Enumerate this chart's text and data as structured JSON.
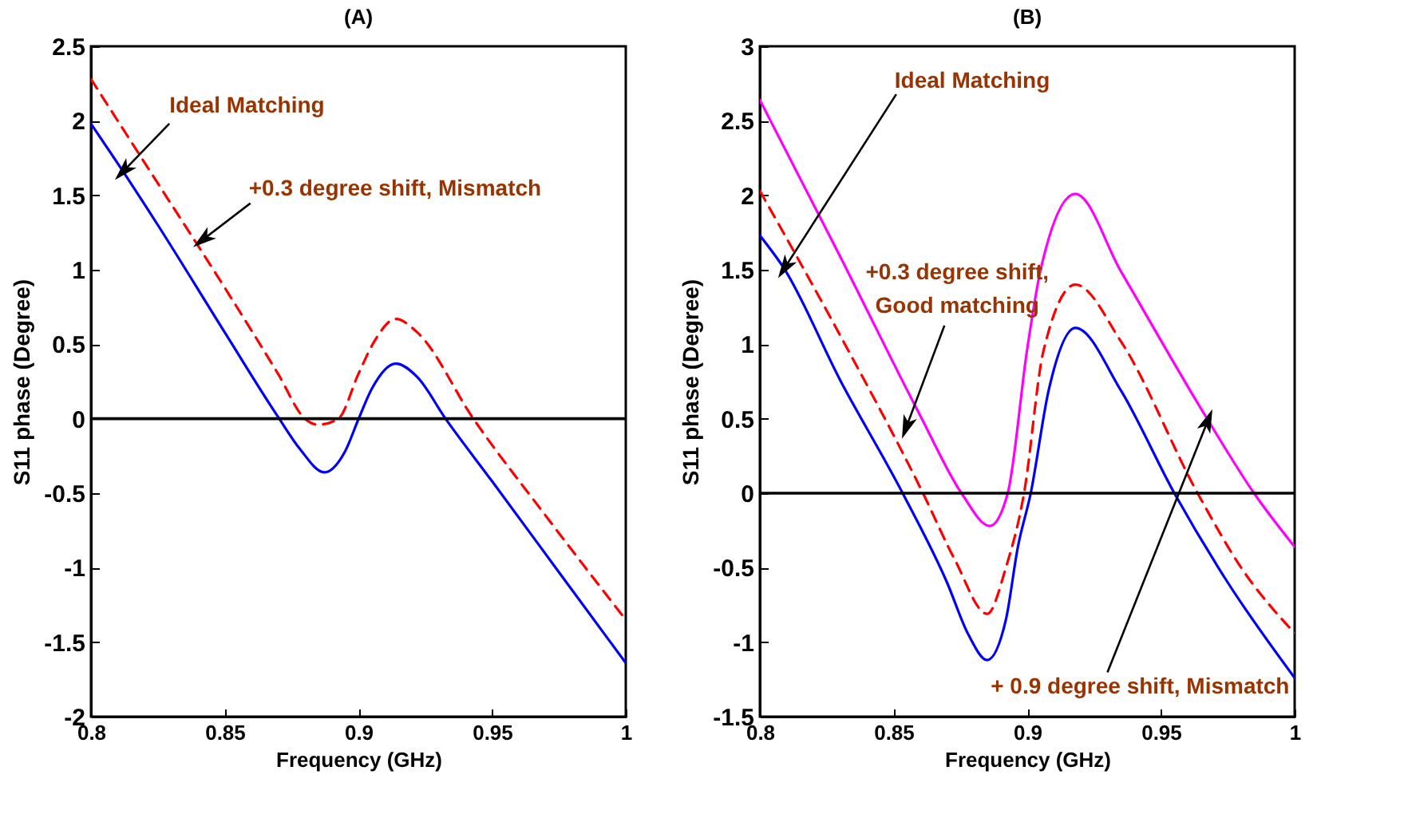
{
  "chart_data": [
    {
      "type": "line",
      "title": "(A)",
      "xlabel": "Frequency (GHz)",
      "ylabel": "S11 phase (Degree)",
      "xlim": [
        0.8,
        1
      ],
      "xticks": [
        0.8,
        0.85,
        0.9,
        0.95,
        1
      ],
      "ylim": [
        -2,
        2.5
      ],
      "yticks": [
        -2,
        -1.5,
        -1,
        -0.5,
        0,
        0.5,
        1,
        1.5,
        2,
        2.5
      ],
      "grid": false,
      "series": [
        {
          "color": "#0000ff",
          "line_style": "solid",
          "x": [
            0.8,
            0.812,
            0.825,
            0.85,
            0.8704,
            0.878,
            0.8873,
            0.895,
            0.9001,
            0.905,
            0.914,
            0.922,
            0.9326,
            0.95,
            0.975,
            1.0
          ],
          "values": [
            1.98,
            1.66,
            1.3,
            0.58,
            0,
            -0.2,
            -0.36,
            -0.22,
            0,
            0.2,
            0.37,
            0.28,
            0,
            -0.42,
            -1.03,
            -1.64
          ]
        },
        {
          "color": "#ff0000",
          "line_style": "dashed",
          "x": [
            0.8,
            0.825,
            0.85,
            0.87,
            0.88,
            0.885,
            0.8925,
            0.9,
            0.906,
            0.914,
            0.922,
            0.943,
            0.97,
            1.0
          ],
          "values": [
            2.28,
            1.58,
            0.88,
            0.3,
            0,
            -0.04,
            0,
            0.3,
            0.52,
            0.67,
            0.58,
            0,
            -0.65,
            -1.35
          ]
        }
      ],
      "ref_lines": [
        {
          "axis": "y",
          "value": 0,
          "color": "#000000"
        }
      ],
      "annotations": [
        {
          "text": "Ideal Matching",
          "x": 0.812,
          "y": 1.66
        },
        {
          "text": "+0.3 degree shift, Mismatch",
          "x": 0.8417,
          "y": 1.2
        }
      ]
    },
    {
      "type": "line",
      "title": "(B)",
      "xlabel": "Frequency (GHz)",
      "ylabel": "S11 phase (Degree)",
      "xlim": [
        0.8,
        1
      ],
      "xticks": [
        0.8,
        0.85,
        0.9,
        0.95,
        1
      ],
      "ylim": [
        -1.5,
        3
      ],
      "yticks": [
        -1.5,
        -1,
        -0.5,
        0,
        0.5,
        1,
        1.5,
        2,
        2.5,
        3
      ],
      "grid": false,
      "series": [
        {
          "color": "#0000ff",
          "line_style": "solid",
          "x": [
            0.8,
            0.809,
            0.83,
            0.8534,
            0.87,
            0.878,
            0.885,
            0.892,
            0.8965,
            0.9013,
            0.908,
            0.918,
            0.935,
            0.955,
            0.975,
            1.0
          ],
          "values": [
            1.73,
            1.51,
            0.76,
            0,
            -0.6,
            -0.95,
            -1.12,
            -0.85,
            -0.36,
            0,
            0.69,
            1.11,
            0.69,
            0,
            -0.6,
            -1.24
          ]
        },
        {
          "color": "#ff0000",
          "line_style": "dashed",
          "x": [
            0.8,
            0.83,
            0.861,
            0.873,
            0.885,
            0.892,
            0.8988,
            0.906,
            0.918,
            0.935,
            0.9637,
            0.98,
            1.0
          ],
          "values": [
            2.03,
            1.06,
            0,
            -0.45,
            -0.81,
            -0.5,
            0,
            0.95,
            1.4,
            1.02,
            0,
            -0.5,
            -0.94
          ]
        },
        {
          "color": "#ff00ff",
          "line_style": "solid",
          "x": [
            0.8,
            0.83,
            0.86,
            0.8754,
            0.886,
            0.8927,
            0.9,
            0.905,
            0.918,
            0.935,
            0.9676,
            0.9848,
            1.0
          ],
          "values": [
            2.64,
            1.59,
            0.52,
            0,
            -0.22,
            0,
            0.97,
            1.5,
            2.01,
            1.49,
            0.49,
            0,
            -0.36
          ]
        }
      ],
      "ref_lines": [
        {
          "axis": "y",
          "value": 0,
          "color": "#000000"
        }
      ],
      "annotations": [
        {
          "text": "Ideal Matching",
          "x": 0.8092,
          "y": 1.51
        },
        {
          "text": "+0.3 degree shift,\nGood matching",
          "x": 0.8547,
          "y": 0.44
        },
        {
          "text": "+ 0.9 degree shift, Mismatch",
          "x": 0.9676,
          "y": 0.49
        }
      ]
    }
  ]
}
